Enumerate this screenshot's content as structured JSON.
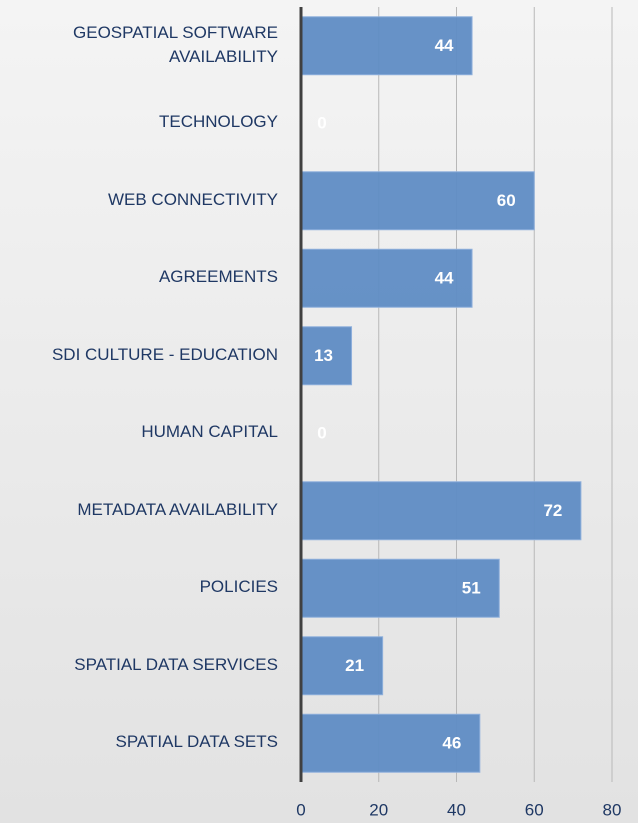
{
  "chart_data": {
    "type": "barh",
    "categories": [
      "GEOSPATIAL SOFTWARE AVAILABILITY",
      "TECHNOLOGY",
      "WEB CONNECTIVITY",
      "AGREEMENTS",
      "SDI CULTURE - EDUCATION",
      "HUMAN CAPITAL",
      "METADATA AVAILABILITY",
      "POLICIES",
      "SPATIAL DATA SERVICES",
      "SPATIAL DATA SETS"
    ],
    "values": [
      44,
      0,
      60,
      44,
      13,
      0,
      72,
      51,
      21,
      46
    ],
    "color": "#5f8cc4",
    "xlim": [
      0,
      80
    ],
    "xticks": [
      0,
      20,
      40,
      60,
      80
    ],
    "grid": true
  }
}
